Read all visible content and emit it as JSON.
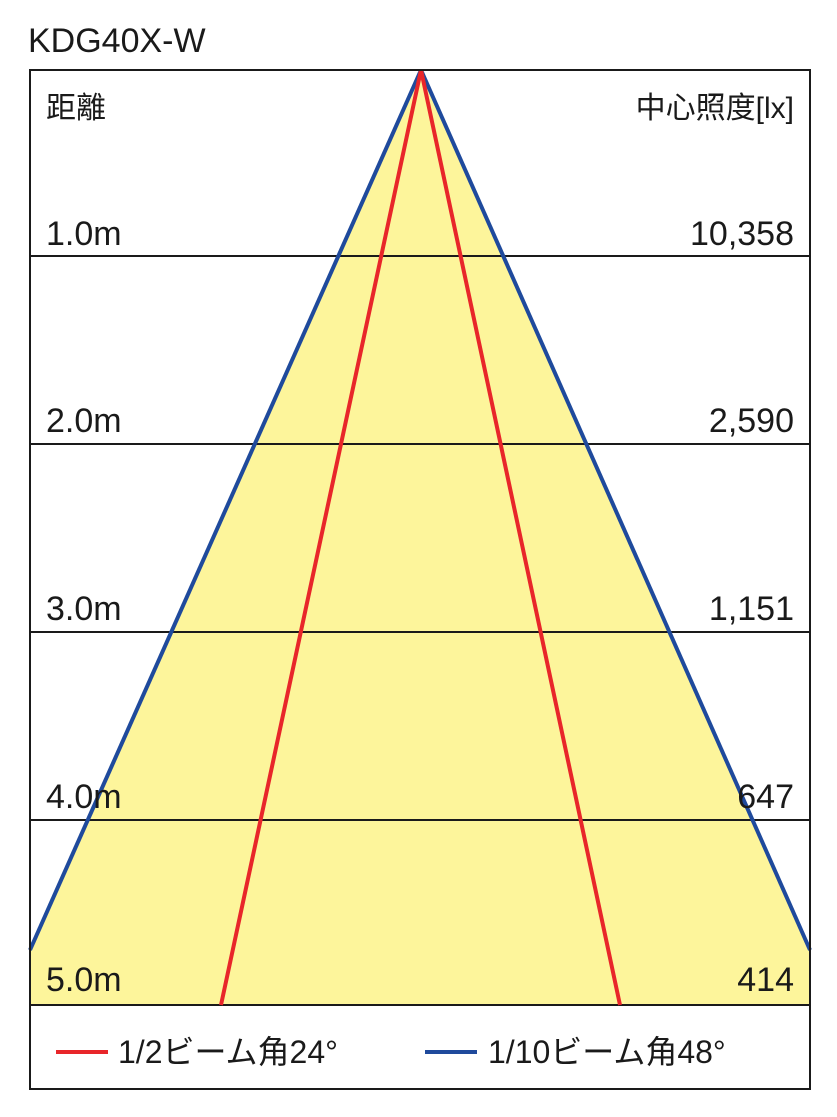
{
  "title": "KDG40X-W",
  "header": {
    "distance_label": "距離",
    "illuminance_label": "中心照度[lx]"
  },
  "rows": [
    {
      "distance": "1.0m",
      "lux": "10,358"
    },
    {
      "distance": "2.0m",
      "lux": "2,590"
    },
    {
      "distance": "3.0m",
      "lux": "1,151"
    },
    {
      "distance": "4.0m",
      "lux": "647"
    },
    {
      "distance": "5.0m",
      "lux": "414"
    }
  ],
  "legend": [
    {
      "label": "1/2ビーム角24°",
      "color": "#e8262a"
    },
    {
      "label": "1/10ビーム角48°",
      "color": "#1f4a9c"
    }
  ],
  "colors": {
    "fill": "#fdf59b",
    "grid": "#1a1a1a"
  }
}
